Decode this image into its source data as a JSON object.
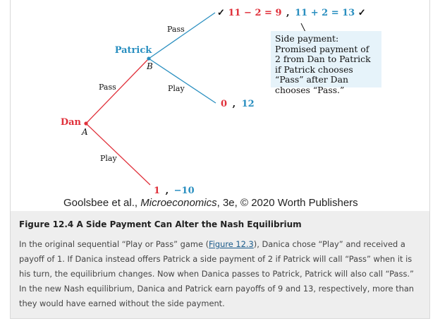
{
  "tree": {
    "players": {
      "dan": {
        "name": "Dan",
        "node": "A",
        "color": "#e0303a"
      },
      "patrick": {
        "name": "Patrick",
        "node": "B",
        "color": "#2a8fc0"
      }
    },
    "branches": {
      "dan_pass": "Pass",
      "dan_play": "Play",
      "patrick_pass": "Pass",
      "patrick_play": "Play"
    },
    "payoffs": {
      "pass_pass": {
        "check_left": "✓",
        "dan": "11 − 2 = 9",
        "sep": ",",
        "patrick": "11 + 2 = 13",
        "check_right": "✓"
      },
      "pass_play": {
        "dan": "0",
        "sep": ",",
        "patrick": "12"
      },
      "play": {
        "dan": "1",
        "sep": ",",
        "patrick": "−10"
      }
    },
    "note": "Side payment: Promised payment of 2 from Dan to Patrick if Patrick chooses “Pass” after Dan chooses “Pass.”"
  },
  "credit": {
    "authors": "Goolsbee et al.,",
    "book": "Microeconomics",
    "rest": ", 3e, © 2020 Worth Publishers"
  },
  "caption": {
    "title": "Figure 12.4 A Side Payment Can Alter the Nash Equilibrium",
    "body_before_link": "In the original sequential “Play or Pass” game (",
    "link_text": "Figure 12.3",
    "body_after_link": "), Danica chose “Play” and received a payoff of 1. If Danica instead offers Patrick a side payment of 2 if Patrick will call “Pass” when it is his turn, the equilibrium changes. Now when Danica passes to Patrick, Patrick will also call “Pass.” In the new Nash equilibrium, Danica and Patrick earn payoffs of 9 and 13, respectively, more than they would have earned without the side payment."
  },
  "colors": {
    "dan": "#e0303a",
    "patrick": "#2a8fc0",
    "note_bg": "#e6f3fa",
    "caption_bg": "#eeeeee",
    "link": "#1a5a8a"
  }
}
